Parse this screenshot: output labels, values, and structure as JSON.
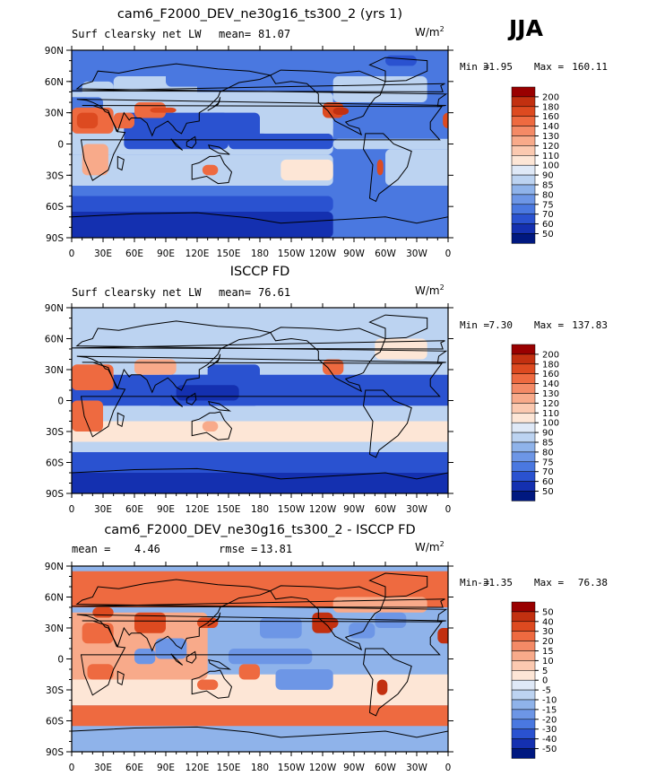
{
  "season_label": "JJA",
  "panels": [
    {
      "title": "cam6_F2000_DEV_ne30g16_ts300_2 (yrs 1)",
      "left_label": "Surf clearsky net LW",
      "stat_label": "mean=",
      "stat_value": "81.07",
      "stat2_label": "",
      "stat2_value": "",
      "units_base": "W/m",
      "units_exp": "2",
      "min_label": "Min =",
      "min_value": "31.95",
      "max_label": "Max =",
      "max_value": "160.11"
    },
    {
      "title": "ISCCP FD",
      "left_label": "Surf clearsky net LW",
      "stat_label": "mean=",
      "stat_value": "76.61",
      "stat2_label": "",
      "stat2_value": "",
      "units_base": "W/m",
      "units_exp": "2",
      "min_label": "Min =",
      "min_value": "7.30",
      "max_label": "Max =",
      "max_value": "137.83"
    },
    {
      "title": "cam6_F2000_DEV_ne30g16_ts300_2 - ISCCP FD",
      "left_label": "mean =",
      "stat_label": "",
      "stat_value": "4.46",
      "stat2_label": "rmse =",
      "stat2_value": "13.81",
      "units_base": "W/m",
      "units_exp": "2",
      "min_label": "Min =",
      "min_value": "-31.35",
      "max_label": "Max =",
      "max_value": "76.38"
    }
  ],
  "chart_data": [
    {
      "type": "heatmap",
      "title": "cam6_F2000_DEV_ne30g16_ts300_2 (yrs 1)",
      "variable": "Surf clearsky net LW",
      "season": "JJA",
      "units": "W/m2",
      "mean": 81.07,
      "min": 31.95,
      "max": 160.11,
      "x_tick_labels": [
        "0",
        "30E",
        "60E",
        "90E",
        "120E",
        "150E",
        "180",
        "150W",
        "120W",
        "90W",
        "60W",
        "30W",
        "0"
      ],
      "y_tick_labels": [
        "90N",
        "60N",
        "30N",
        "0",
        "30S",
        "60S",
        "90S"
      ],
      "xlim": [
        0,
        360
      ],
      "ylim": [
        -90,
        90
      ],
      "colorbar_levels": [
        "200",
        "180",
        "160",
        "140",
        "130",
        "120",
        "110",
        "100",
        "90",
        "85",
        "80",
        "75",
        "70",
        "60",
        "50"
      ],
      "colorbar_colors": [
        "#990000",
        "#c23010",
        "#dd4a20",
        "#ee6a40",
        "#f48a66",
        "#f8aa8a",
        "#fbc9b0",
        "#fde6d6",
        "#dfe9f7",
        "#bcd3f1",
        "#8fb3ea",
        "#6d96e6",
        "#4a78e0",
        "#2a52d0",
        "#1430b0",
        "#001880"
      ]
    },
    {
      "type": "heatmap",
      "title": "ISCCP FD",
      "variable": "Surf clearsky net LW",
      "season": "JJA",
      "units": "W/m2",
      "mean": 76.61,
      "min": 7.3,
      "max": 137.83,
      "x_tick_labels": [
        "0",
        "30E",
        "60E",
        "90E",
        "120E",
        "150E",
        "180",
        "150W",
        "120W",
        "90W",
        "60W",
        "30W",
        "0"
      ],
      "y_tick_labels": [
        "90N",
        "60N",
        "30N",
        "0",
        "30S",
        "60S",
        "90S"
      ],
      "xlim": [
        0,
        360
      ],
      "ylim": [
        -90,
        90
      ],
      "colorbar_levels": [
        "200",
        "180",
        "160",
        "140",
        "130",
        "120",
        "110",
        "100",
        "90",
        "85",
        "80",
        "75",
        "70",
        "60",
        "50"
      ],
      "colorbar_colors": [
        "#990000",
        "#c23010",
        "#dd4a20",
        "#ee6a40",
        "#f48a66",
        "#f8aa8a",
        "#fbc9b0",
        "#fde6d6",
        "#dfe9f7",
        "#bcd3f1",
        "#8fb3ea",
        "#6d96e6",
        "#4a78e0",
        "#2a52d0",
        "#1430b0",
        "#001880"
      ]
    },
    {
      "type": "heatmap",
      "title": "cam6_F2000_DEV_ne30g16_ts300_2 - ISCCP FD",
      "variable": "difference",
      "season": "JJA",
      "units": "W/m2",
      "mean": 4.46,
      "rmse": 13.81,
      "min": -31.35,
      "max": 76.38,
      "x_tick_labels": [
        "0",
        "30E",
        "60E",
        "90E",
        "120E",
        "150E",
        "180",
        "150W",
        "120W",
        "90W",
        "60W",
        "30W",
        "0"
      ],
      "y_tick_labels": [
        "90N",
        "60N",
        "30N",
        "0",
        "30S",
        "60S",
        "90S"
      ],
      "xlim": [
        0,
        360
      ],
      "ylim": [
        -90,
        90
      ],
      "colorbar_levels": [
        "50",
        "40",
        "30",
        "20",
        "15",
        "10",
        "5",
        "0",
        "-5",
        "-10",
        "-15",
        "-20",
        "-30",
        "-40",
        "-50"
      ],
      "colorbar_colors": [
        "#990000",
        "#c23010",
        "#dd4a20",
        "#ee6a40",
        "#f48a66",
        "#f8aa8a",
        "#fbc9b0",
        "#fde6d6",
        "#dfe9f7",
        "#bcd3f1",
        "#8fb3ea",
        "#6d96e6",
        "#4a78e0",
        "#2a52d0",
        "#1430b0",
        "#001880"
      ]
    }
  ]
}
